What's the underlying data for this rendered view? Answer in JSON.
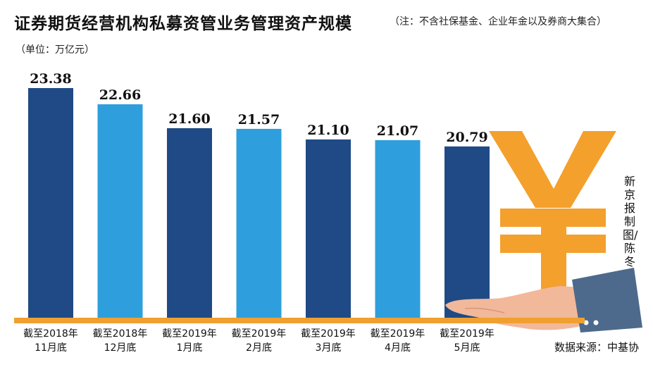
{
  "header": {
    "title": "证券期货经营机构私募资管业务管理资产规模",
    "note": "（注：不含社保基金、企业年金以及券商大集合）",
    "unit": "（单位：万亿元）"
  },
  "credit": "新京报制图/陈冬",
  "source": "数据来源：中基协",
  "colors": {
    "dark_bar": "#1f4a85",
    "light_bar": "#2e9fdc",
    "baseline": "#f0a030",
    "yuan": "#f4a02c",
    "sleeve": "#4d6a8c",
    "hand": "#f2b89a"
  },
  "icons": [
    "yuan-sign-icon",
    "hand-icon"
  ],
  "chart_data": {
    "type": "bar",
    "title": "证券期货经营机构私募资管业务管理资产规模",
    "ylabel": "",
    "unit": "万亿元",
    "categories": [
      [
        "截至2018年",
        "11月底"
      ],
      [
        "截至2018年",
        "12月底"
      ],
      [
        "截至2019年",
        "1月底"
      ],
      [
        "截至2019年",
        "2月底"
      ],
      [
        "截至2019年",
        "3月底"
      ],
      [
        "截至2019年",
        "4月底"
      ],
      [
        "截至2019年",
        "5月底"
      ]
    ],
    "values": [
      23.38,
      22.66,
      21.6,
      21.57,
      21.1,
      21.07,
      20.79
    ],
    "value_labels": [
      "23.38",
      "22.66",
      "21.60",
      "21.57",
      "21.10",
      "21.07",
      "20.79"
    ],
    "bar_colors": [
      "dark",
      "light",
      "dark",
      "light",
      "dark",
      "light",
      "dark"
    ],
    "ylim": [
      0,
      23.38
    ],
    "grid": false,
    "legend": "none"
  }
}
